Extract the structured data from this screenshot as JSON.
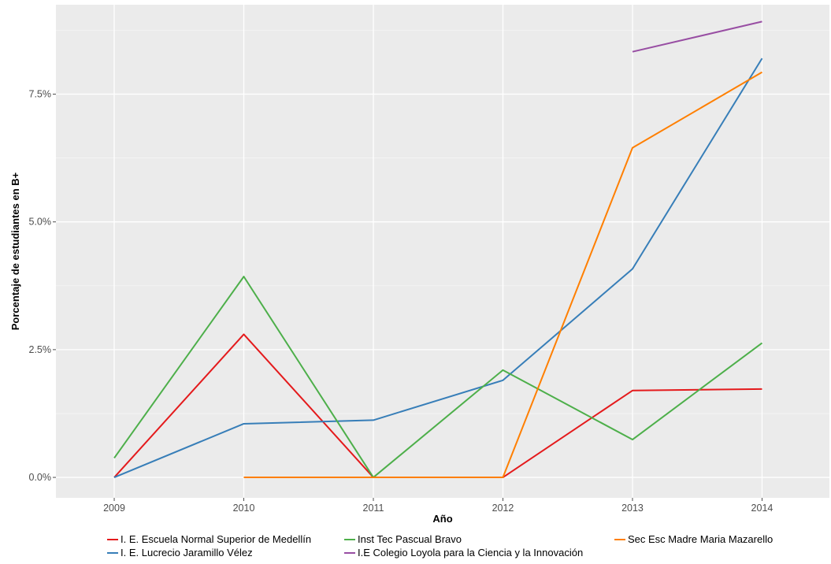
{
  "chart_data": {
    "type": "line",
    "title": "",
    "xlabel": "Año",
    "ylabel": "Porcentaje de estudiantes en B+",
    "x": [
      2009,
      2010,
      2011,
      2012,
      2013,
      2014
    ],
    "xlim": [
      2008.55,
      2014.52
    ],
    "ylim": [
      -0.4,
      9.25
    ],
    "y_ticks": [
      0,
      2.5,
      5,
      7.5
    ],
    "y_tick_labels": [
      "0.0%",
      "2.5%",
      "5.0%",
      "7.5%"
    ],
    "x_tick_labels": [
      "2009",
      "2010",
      "2011",
      "2012",
      "2013",
      "2014"
    ],
    "grid": true,
    "legend_position": "bottom",
    "series": [
      {
        "name": "I. E. Escuela Normal Superior de Medellín",
        "color": "#e41a1c",
        "values": [
          0,
          2.8,
          0,
          0,
          1.7,
          1.73
        ]
      },
      {
        "name": "I. E. Lucrecio Jaramillo Vélez",
        "color": "#377eb8",
        "values": [
          0,
          1.05,
          1.12,
          1.9,
          4.08,
          8.2
        ]
      },
      {
        "name": "Inst Tec Pascual Bravo",
        "color": "#4daf4a",
        "values": [
          0.38,
          3.93,
          0,
          2.1,
          0.74,
          2.63
        ]
      },
      {
        "name": "I.E Colegio Loyola para la Ciencia y la Innovación",
        "color": "#984ea3",
        "values": [
          null,
          null,
          null,
          null,
          8.33,
          8.92
        ]
      },
      {
        "name": "Sec Esc Madre Maria Mazarello",
        "color": "#ff7f00",
        "values": [
          null,
          0,
          0,
          0,
          6.45,
          7.93
        ]
      }
    ]
  }
}
